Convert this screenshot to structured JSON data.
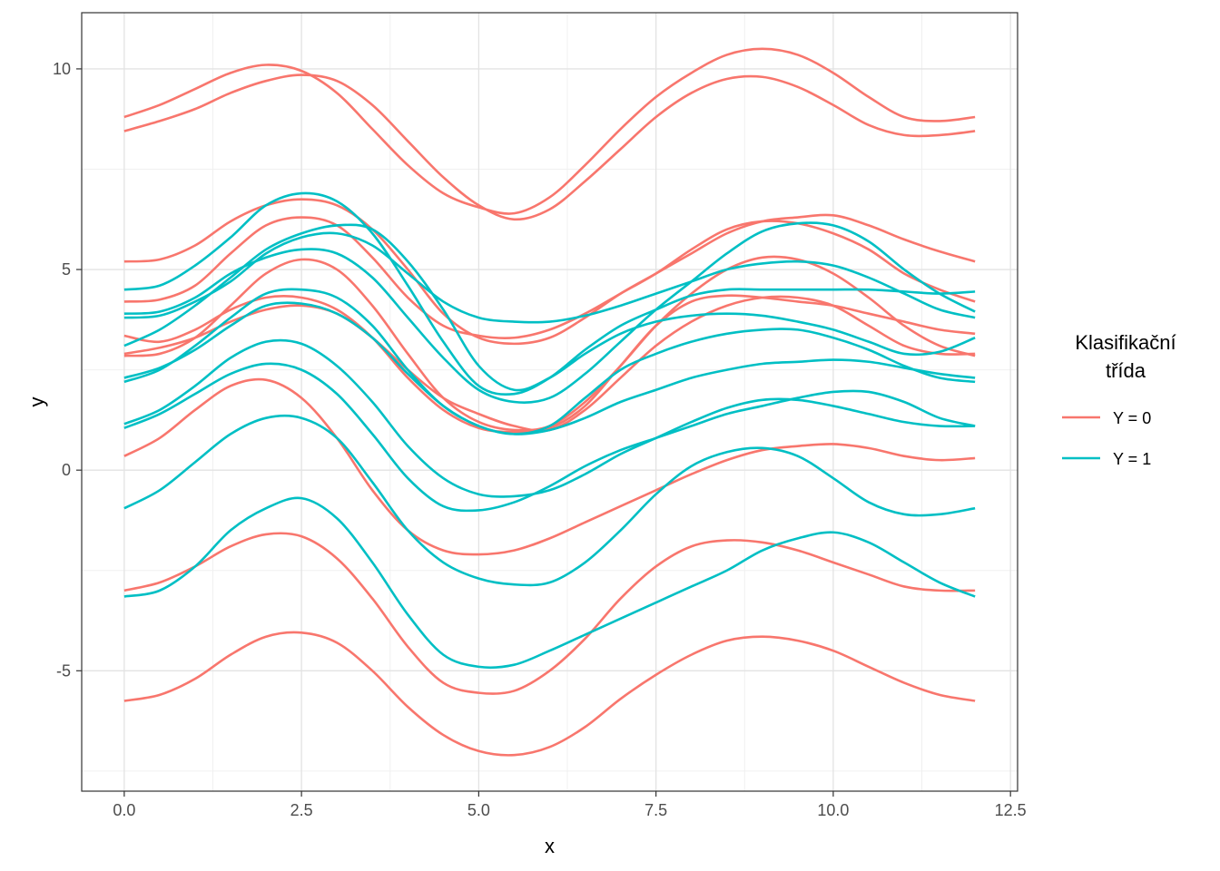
{
  "chart_data": {
    "type": "line",
    "xlabel": "x",
    "ylabel": "y",
    "xlim": [
      -0.6,
      12.6
    ],
    "ylim": [
      -8.0,
      11.4
    ],
    "x_ticks": [
      {
        "value": 0,
        "label": "0.0"
      },
      {
        "value": 2.5,
        "label": "2.5"
      },
      {
        "value": 5,
        "label": "5.0"
      },
      {
        "value": 7.5,
        "label": "7.5"
      },
      {
        "value": 10,
        "label": "10.0"
      },
      {
        "value": 12.5,
        "label": "12.5"
      }
    ],
    "y_ticks": [
      {
        "value": -5,
        "label": "-5"
      },
      {
        "value": 0,
        "label": "0"
      },
      {
        "value": 5,
        "label": "5"
      },
      {
        "value": 10,
        "label": "10"
      }
    ],
    "grid": true,
    "legend": {
      "title_line1": "Klasifikační",
      "title_line2": "třída",
      "placement": "right",
      "items": [
        {
          "label": "Y = 0",
          "color": "#F8766D"
        },
        {
          "label": "Y = 1",
          "color": "#00BFC4"
        }
      ]
    },
    "x": [
      0,
      0.5,
      1,
      1.5,
      2,
      2.5,
      3,
      3.5,
      4,
      4.5,
      5,
      5.5,
      6,
      6.5,
      7,
      7.5,
      8,
      8.5,
      9,
      9.5,
      10,
      10.5,
      11,
      11.5,
      12
    ],
    "series": [
      {
        "class": 0,
        "color": "#F8766D",
        "y": [
          8.8,
          9.1,
          9.5,
          9.9,
          10.1,
          9.95,
          9.4,
          8.5,
          7.6,
          6.9,
          6.55,
          6.4,
          6.8,
          7.6,
          8.5,
          9.3,
          9.9,
          10.35,
          10.5,
          10.35,
          9.9,
          9.3,
          8.8,
          8.7,
          8.8
        ]
      },
      {
        "class": 0,
        "color": "#F8766D",
        "y": [
          8.45,
          8.7,
          9.0,
          9.4,
          9.7,
          9.85,
          9.7,
          9.1,
          8.2,
          7.3,
          6.6,
          6.25,
          6.5,
          7.2,
          8.0,
          8.8,
          9.4,
          9.75,
          9.8,
          9.55,
          9.1,
          8.6,
          8.35,
          8.35,
          8.45
        ]
      },
      {
        "class": 0,
        "color": "#F8766D",
        "y": [
          5.2,
          5.25,
          5.6,
          6.2,
          6.6,
          6.75,
          6.6,
          6.0,
          5.0,
          3.9,
          3.3,
          3.15,
          3.3,
          3.8,
          4.4,
          4.9,
          5.4,
          5.9,
          6.2,
          6.3,
          6.35,
          6.1,
          5.75,
          5.45,
          5.2
        ]
      },
      {
        "class": 0,
        "color": "#F8766D",
        "y": [
          4.2,
          4.25,
          4.6,
          5.4,
          6.1,
          6.3,
          6.1,
          5.3,
          4.3,
          3.6,
          3.35,
          3.3,
          3.5,
          3.9,
          4.4,
          4.9,
          5.5,
          6.0,
          6.2,
          6.15,
          5.9,
          5.5,
          4.9,
          4.5,
          4.2
        ]
      },
      {
        "class": 0,
        "color": "#F8766D",
        "y": [
          2.85,
          2.9,
          3.3,
          4.1,
          4.9,
          5.25,
          5.0,
          4.1,
          2.9,
          1.8,
          1.2,
          1.0,
          1.1,
          1.7,
          2.6,
          3.6,
          4.4,
          5.0,
          5.3,
          5.25,
          4.9,
          4.3,
          3.6,
          3.1,
          2.85
        ]
      },
      {
        "class": 0,
        "color": "#F8766D",
        "y": [
          3.35,
          3.2,
          3.5,
          4.0,
          4.3,
          4.3,
          4.0,
          3.3,
          2.3,
          1.5,
          1.05,
          0.95,
          1.05,
          1.6,
          2.6,
          3.6,
          4.2,
          4.35,
          4.3,
          4.2,
          4.1,
          3.9,
          3.7,
          3.5,
          3.4
        ]
      },
      {
        "class": 0,
        "color": "#F8766D",
        "y": [
          2.9,
          3.05,
          3.3,
          3.7,
          4.0,
          4.1,
          3.9,
          3.3,
          2.5,
          1.8,
          1.4,
          1.1,
          1.0,
          1.5,
          2.3,
          3.1,
          3.7,
          4.1,
          4.3,
          4.3,
          4.1,
          3.6,
          3.1,
          2.9,
          2.9
        ]
      },
      {
        "class": 0,
        "color": "#F8766D",
        "y": [
          0.35,
          0.8,
          1.5,
          2.1,
          2.25,
          1.8,
          0.8,
          -0.5,
          -1.5,
          -2.0,
          -2.1,
          -2.0,
          -1.7,
          -1.3,
          -0.9,
          -0.5,
          -0.1,
          0.25,
          0.5,
          0.6,
          0.65,
          0.55,
          0.35,
          0.25,
          0.3
        ]
      },
      {
        "class": 0,
        "color": "#F8766D",
        "y": [
          -3.0,
          -2.8,
          -2.4,
          -1.9,
          -1.6,
          -1.65,
          -2.2,
          -3.2,
          -4.4,
          -5.3,
          -5.55,
          -5.5,
          -5.0,
          -4.2,
          -3.2,
          -2.4,
          -1.9,
          -1.75,
          -1.8,
          -2.0,
          -2.3,
          -2.6,
          -2.9,
          -3.0,
          -3.0
        ]
      },
      {
        "class": 0,
        "color": "#F8766D",
        "y": [
          -5.75,
          -5.6,
          -5.2,
          -4.6,
          -4.15,
          -4.05,
          -4.3,
          -5.0,
          -5.9,
          -6.6,
          -7.0,
          -7.1,
          -6.9,
          -6.4,
          -5.7,
          -5.1,
          -4.6,
          -4.25,
          -4.15,
          -4.25,
          -4.5,
          -4.9,
          -5.3,
          -5.6,
          -5.75
        ]
      },
      {
        "class": 1,
        "color": "#00BFC4",
        "y": [
          4.5,
          4.6,
          5.1,
          5.8,
          6.6,
          6.9,
          6.7,
          5.9,
          4.6,
          3.2,
          2.1,
          1.9,
          2.3,
          3.0,
          3.6,
          4.0,
          4.35,
          4.5,
          4.5,
          4.5,
          4.5,
          4.5,
          4.45,
          4.4,
          4.45
        ]
      },
      {
        "class": 1,
        "color": "#00BFC4",
        "y": [
          3.9,
          3.95,
          4.3,
          4.9,
          5.3,
          5.5,
          5.4,
          4.8,
          3.8,
          2.8,
          2.0,
          1.7,
          1.8,
          2.4,
          3.2,
          4.0,
          4.7,
          5.4,
          5.95,
          6.15,
          6.1,
          5.7,
          5.0,
          4.4,
          3.95
        ]
      },
      {
        "class": 1,
        "color": "#00BFC4",
        "y": [
          3.8,
          3.85,
          4.2,
          4.7,
          5.4,
          5.8,
          5.9,
          5.6,
          4.9,
          4.2,
          3.8,
          3.7,
          3.7,
          3.85,
          4.1,
          4.4,
          4.7,
          5.0,
          5.15,
          5.2,
          5.1,
          4.8,
          4.4,
          4.0,
          3.8
        ]
      },
      {
        "class": 1,
        "color": "#00BFC4",
        "y": [
          3.1,
          3.5,
          4.1,
          4.8,
          5.5,
          5.9,
          6.1,
          6.0,
          5.2,
          4.0,
          2.6,
          2.0,
          2.3,
          2.9,
          3.4,
          3.7,
          3.85,
          3.9,
          3.85,
          3.7,
          3.5,
          3.2,
          2.9,
          2.95,
          3.3
        ]
      },
      {
        "class": 1,
        "color": "#00BFC4",
        "y": [
          2.2,
          2.5,
          3.1,
          3.8,
          4.4,
          4.5,
          4.3,
          3.6,
          2.5,
          1.6,
          1.1,
          0.9,
          1.1,
          1.8,
          2.5,
          2.9,
          3.2,
          3.4,
          3.5,
          3.5,
          3.3,
          3.0,
          2.6,
          2.3,
          2.2
        ]
      },
      {
        "class": 1,
        "color": "#00BFC4",
        "y": [
          2.3,
          2.55,
          3.0,
          3.6,
          4.1,
          4.15,
          3.9,
          3.3,
          2.4,
          1.6,
          1.1,
          0.9,
          1.0,
          1.3,
          1.7,
          2.0,
          2.3,
          2.5,
          2.65,
          2.7,
          2.75,
          2.7,
          2.55,
          2.4,
          2.3
        ]
      },
      {
        "class": 1,
        "color": "#00BFC4",
        "y": [
          1.15,
          1.5,
          2.1,
          2.8,
          3.2,
          3.15,
          2.6,
          1.7,
          0.6,
          -0.2,
          -0.6,
          -0.65,
          -0.5,
          -0.1,
          0.4,
          0.8,
          1.2,
          1.55,
          1.75,
          1.75,
          1.6,
          1.4,
          1.2,
          1.1,
          1.1
        ]
      },
      {
        "class": 1,
        "color": "#00BFC4",
        "y": [
          1.05,
          1.4,
          1.9,
          2.4,
          2.65,
          2.5,
          1.9,
          0.9,
          -0.2,
          -0.9,
          -1.0,
          -0.8,
          -0.4,
          0.1,
          0.5,
          0.8,
          1.1,
          1.4,
          1.6,
          1.8,
          1.95,
          1.95,
          1.7,
          1.3,
          1.1
        ]
      },
      {
        "class": 1,
        "color": "#00BFC4",
        "y": [
          -0.95,
          -0.5,
          0.2,
          0.9,
          1.3,
          1.3,
          0.8,
          -0.3,
          -1.5,
          -2.3,
          -2.7,
          -2.85,
          -2.8,
          -2.3,
          -1.5,
          -0.6,
          0.1,
          0.45,
          0.55,
          0.35,
          -0.2,
          -0.8,
          -1.1,
          -1.1,
          -0.95
        ]
      },
      {
        "class": 1,
        "color": "#00BFC4",
        "y": [
          -3.15,
          -3.0,
          -2.4,
          -1.5,
          -0.95,
          -0.7,
          -1.2,
          -2.3,
          -3.6,
          -4.6,
          -4.9,
          -4.85,
          -4.5,
          -4.1,
          -3.7,
          -3.3,
          -2.9,
          -2.5,
          -2.0,
          -1.7,
          -1.55,
          -1.8,
          -2.3,
          -2.8,
          -3.15
        ]
      }
    ]
  }
}
